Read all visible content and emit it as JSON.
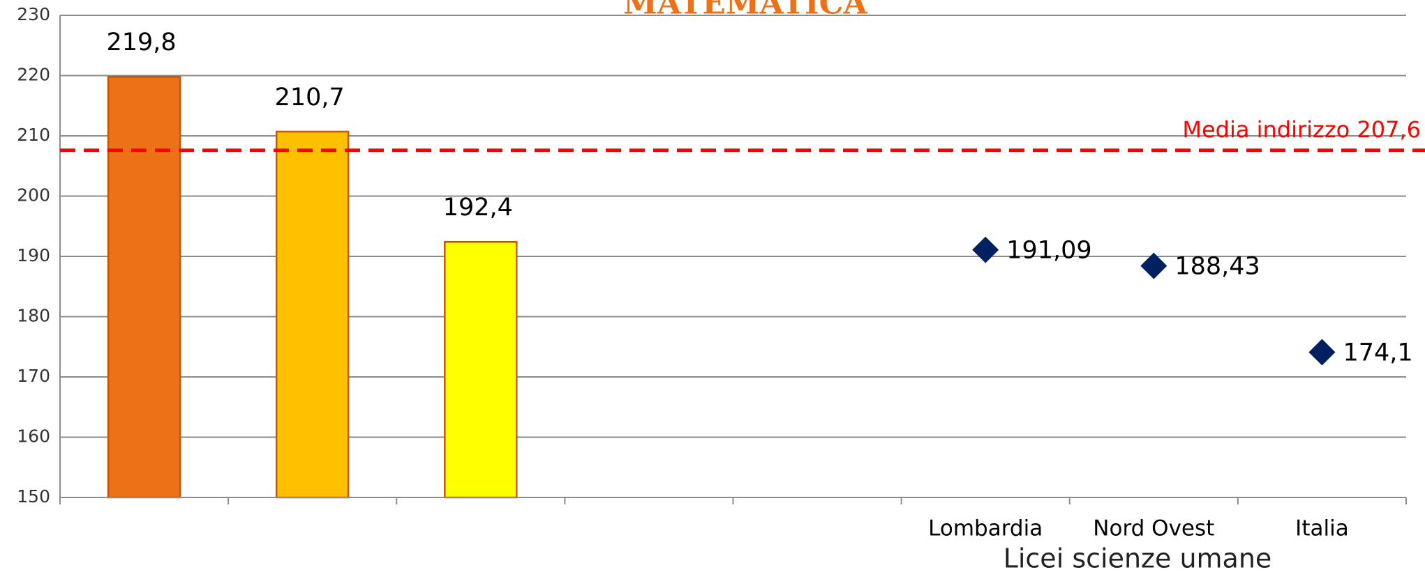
{
  "chart_data": {
    "type": "bar",
    "title": "MATEMATICA",
    "x_label": "Licei scienze umane",
    "categories": [
      null,
      null,
      null,
      null,
      null,
      "Lombardia",
      "Nord Ovest",
      "Italia"
    ],
    "series": [
      {
        "type": "bar",
        "colors": [
          "#ED7117",
          "#FFC000",
          "#FFFF00"
        ],
        "edge_color": "#C0580E",
        "values": [
          219.8,
          210.7,
          192.4,
          null,
          null,
          null,
          null,
          null
        ],
        "value_labels": [
          "219,8",
          "210,7",
          "192,4",
          null,
          null,
          null,
          null,
          null
        ]
      },
      {
        "type": "scatter",
        "color": "#002060",
        "values": [
          null,
          null,
          null,
          null,
          null,
          191.09,
          188.43,
          174.1
        ],
        "value_labels": [
          null,
          null,
          null,
          null,
          null,
          "191,09",
          "188,43",
          "174,1"
        ]
      }
    ],
    "reference_lines": [
      {
        "value": 207.6,
        "label": "Media indirizzo 207,6",
        "color": "#FF0000"
      }
    ],
    "ylim": [
      150,
      230
    ],
    "yticks": [
      150,
      160,
      170,
      180,
      190,
      200,
      210,
      220,
      230
    ],
    "grid": true
  }
}
